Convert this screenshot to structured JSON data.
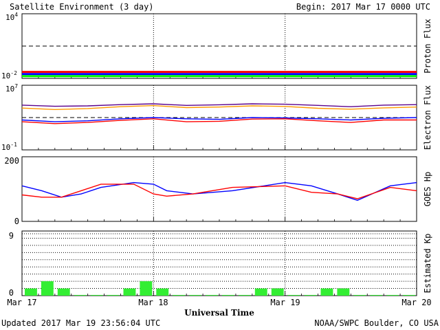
{
  "header": {
    "title": "Satellite Environment (3 day)",
    "begin": "Begin:  2017 Mar 17 0000 UTC"
  },
  "footer": {
    "updated": "Updated 2017 Mar 19 23:56:04 UTC",
    "credit": "NOAA/SWPC Boulder, CO USA"
  },
  "x_axis": {
    "label": "Universal Time",
    "ticks": [
      "Mar 17",
      "Mar 18",
      "Mar 19",
      "Mar 20"
    ]
  },
  "colors": {
    "red": "#ff0000",
    "blue": "#0000ff",
    "green": "#00ff00",
    "purple": "#5a008c",
    "orange": "#ff9900",
    "kp_bar": "#33ee33"
  },
  "chart_data": [
    {
      "type": "line",
      "ylabel": "Proton Flux",
      "yscale": "log",
      "ylim": [
        0.01,
        10000
      ],
      "ytick_labels": [
        {
          "base": "10",
          "exp": "4"
        },
        {
          "base": "10",
          "exp": "-2"
        }
      ],
      "x": [
        0,
        0.5,
        1,
        1.5,
        2,
        2.5,
        3
      ],
      "threshold": 10,
      "series": [
        {
          "color": "#ff0000",
          "values": [
            0.04,
            0.04,
            0.04,
            0.04,
            0.04,
            0.04,
            0.04
          ]
        },
        {
          "color": "#0000ff",
          "values": [
            0.025,
            0.025,
            0.025,
            0.025,
            0.025,
            0.025,
            0.025
          ]
        },
        {
          "color": "#00ff00",
          "values": [
            0.016,
            0.016,
            0.016,
            0.016,
            0.016,
            0.016,
            0.016
          ]
        }
      ]
    },
    {
      "type": "line",
      "ylabel": "Electron Flux",
      "yscale": "log",
      "ylim": [
        0.1,
        10000000
      ],
      "ytick_labels": [
        {
          "base": "10",
          "exp": "7"
        },
        {
          "base": "10",
          "exp": "-1"
        }
      ],
      "x": [
        0,
        0.25,
        0.5,
        0.75,
        1,
        1.25,
        1.5,
        1.75,
        2,
        2.25,
        2.5,
        2.75,
        3
      ],
      "threshold": 1000,
      "series": [
        {
          "color": "#5a008c",
          "values": [
            35000,
            25000,
            28000,
            40000,
            50000,
            32000,
            38000,
            50000,
            45000,
            32000,
            22000,
            35000,
            40000
          ]
        },
        {
          "color": "#ff9900",
          "values": [
            15000,
            10000,
            13000,
            22000,
            30000,
            17000,
            20000,
            28000,
            24000,
            14000,
            11000,
            16000,
            20000
          ]
        },
        {
          "color": "#0000ff",
          "values": [
            500,
            300,
            400,
            700,
            1000,
            700,
            600,
            1000,
            900,
            700,
            500,
            800,
            1000
          ]
        },
        {
          "color": "#ff0000",
          "values": [
            300,
            180,
            250,
            450,
            700,
            300,
            350,
            650,
            700,
            400,
            250,
            500,
            500
          ]
        }
      ]
    },
    {
      "type": "line",
      "ylabel": "GOES Hp",
      "ylim": [
        0,
        200
      ],
      "ytick_labels": [
        "200",
        "0"
      ],
      "x": [
        0,
        0.15,
        0.3,
        0.45,
        0.6,
        0.85,
        1,
        1.1,
        1.3,
        1.6,
        2,
        2.2,
        2.4,
        2.55,
        2.8,
        3
      ],
      "series": [
        {
          "color": "#0000ff",
          "values": [
            110,
            95,
            75,
            85,
            105,
            120,
            115,
            95,
            85,
            95,
            120,
            110,
            85,
            65,
            110,
            120
          ]
        },
        {
          "color": "#ff0000",
          "values": [
            82,
            75,
            75,
            95,
            115,
            115,
            85,
            78,
            85,
            105,
            110,
            90,
            85,
            70,
            105,
            95
          ]
        }
      ]
    },
    {
      "type": "bar",
      "ylabel": "Estimated Kp",
      "ylim": [
        0,
        9
      ],
      "ytick_labels": [
        "9",
        "0"
      ],
      "grid_y": [
        0,
        1,
        2,
        3,
        4,
        5,
        6,
        7,
        8,
        9
      ],
      "bar_width_days": 0.125,
      "values": [
        1,
        2,
        1,
        0.1,
        0.1,
        0.1,
        1,
        2,
        1,
        0.1,
        0.1,
        0.1,
        0.1,
        0.1,
        1,
        1,
        0.1,
        0.1,
        1,
        1,
        0.1,
        0.1,
        0.1,
        0.1
      ]
    }
  ]
}
